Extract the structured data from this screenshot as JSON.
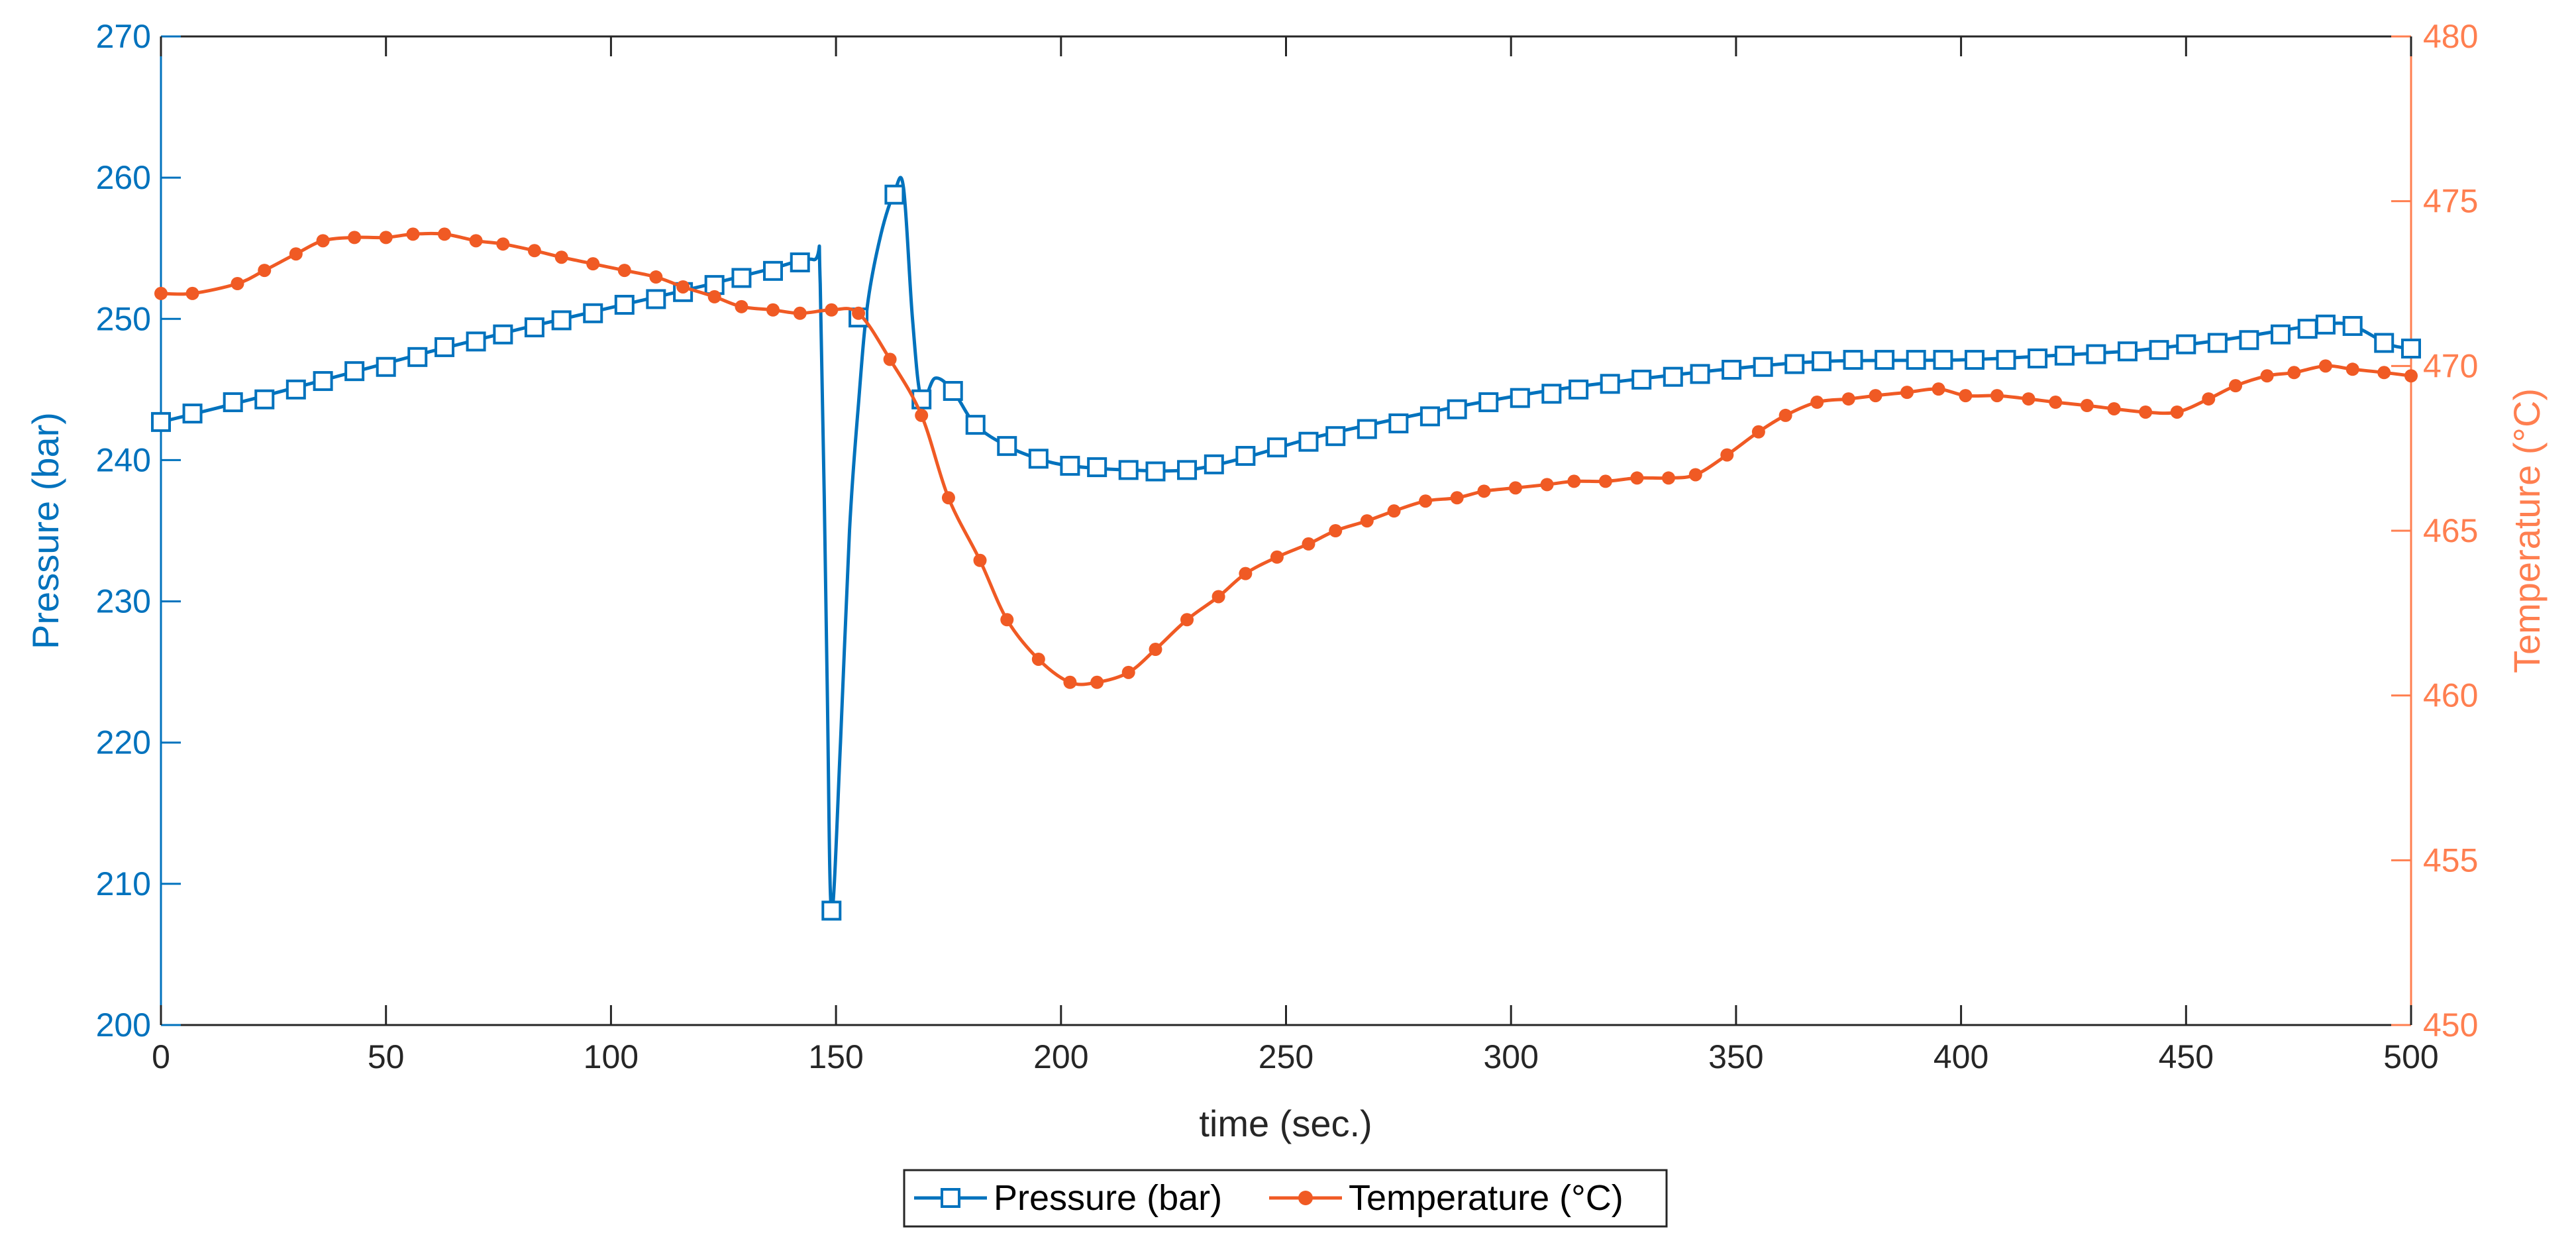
{
  "chart_data": {
    "type": "line",
    "title": "",
    "xlabel": "time (sec.)",
    "xlim": [
      0,
      500
    ],
    "x_ticks": [
      "0",
      "50",
      "100",
      "150",
      "200",
      "250",
      "300",
      "350",
      "400",
      "450",
      "500"
    ],
    "y_left": {
      "label": "Pressure (bar)",
      "lim": [
        200,
        270
      ],
      "ticks": [
        "200",
        "210",
        "220",
        "230",
        "240",
        "250",
        "260",
        "270"
      ],
      "color": "#0072BD"
    },
    "y_right": {
      "label": "Temperature (°C)",
      "lim": [
        450,
        480
      ],
      "ticks": [
        "450",
        "455",
        "460",
        "465",
        "470",
        "475",
        "480"
      ],
      "color": "#FF7F50"
    },
    "legend_position": "bottom-center",
    "grid": false,
    "series": [
      {
        "name": "Pressure (bar)",
        "axis": "left",
        "color": "#0072BD",
        "marker": "square-open",
        "curve": [
          [
            0,
            242.7
          ],
          [
            20,
            244.3
          ],
          [
            40,
            246.0
          ],
          [
            60,
            247.7
          ],
          [
            80,
            249.3
          ],
          [
            100,
            250.8
          ],
          [
            120,
            252.3
          ],
          [
            135,
            253.5
          ],
          [
            145,
            254.2
          ],
          [
            146.5,
            252.5
          ],
          [
            148,
            225
          ],
          [
            149,
            208.1
          ],
          [
            151,
            220
          ],
          [
            153,
            235
          ],
          [
            155,
            244
          ],
          [
            157,
            251
          ],
          [
            160,
            256
          ],
          [
            163,
            259
          ],
          [
            165,
            259.3
          ],
          [
            167,
            250
          ],
          [
            169,
            244.3
          ],
          [
            172,
            245.8
          ],
          [
            176,
            244.9
          ],
          [
            181,
            242.5
          ],
          [
            188,
            241.0
          ],
          [
            195,
            240.1
          ],
          [
            202,
            239.6
          ],
          [
            215,
            239.3
          ],
          [
            228,
            239.3
          ],
          [
            240,
            240.1
          ],
          [
            255,
            241.5
          ],
          [
            270,
            242.6
          ],
          [
            290,
            243.9
          ],
          [
            310,
            245.0
          ],
          [
            330,
            245.8
          ],
          [
            350,
            246.5
          ],
          [
            370,
            247.0
          ],
          [
            400,
            247.1
          ],
          [
            420,
            247.4
          ],
          [
            440,
            247.8
          ],
          [
            460,
            248.6
          ],
          [
            480,
            249.6
          ],
          [
            487,
            249.5
          ],
          [
            495,
            248.2
          ],
          [
            500,
            247.9
          ]
        ],
        "markers": [
          [
            0,
            242.7
          ],
          [
            7,
            243.3
          ],
          [
            16,
            244.1
          ],
          [
            23,
            244.3
          ],
          [
            30,
            245.0
          ],
          [
            36,
            245.6
          ],
          [
            43,
            246.3
          ],
          [
            50,
            246.6
          ],
          [
            57,
            247.3
          ],
          [
            63,
            248.0
          ],
          [
            70,
            248.4
          ],
          [
            76,
            248.9
          ],
          [
            83,
            249.4
          ],
          [
            89,
            249.9
          ],
          [
            96,
            250.4
          ],
          [
            103,
            251.0
          ],
          [
            110,
            251.4
          ],
          [
            116,
            251.9
          ],
          [
            123,
            252.4
          ],
          [
            129,
            252.9
          ],
          [
            136,
            253.4
          ],
          [
            142,
            254.0
          ],
          [
            149,
            208.1
          ],
          [
            155,
            250.1
          ],
          [
            163,
            258.8
          ],
          [
            169,
            244.3
          ],
          [
            176,
            244.9
          ],
          [
            181,
            242.5
          ],
          [
            188,
            241.0
          ],
          [
            195,
            240.1
          ],
          [
            202,
            239.6
          ],
          [
            208,
            239.5
          ],
          [
            215,
            239.3
          ],
          [
            221,
            239.2
          ],
          [
            228,
            239.3
          ],
          [
            234,
            239.7
          ],
          [
            241,
            240.3
          ],
          [
            248,
            240.9
          ],
          [
            255,
            241.3
          ],
          [
            261,
            241.7
          ],
          [
            268,
            242.2
          ],
          [
            275,
            242.6
          ],
          [
            282,
            243.1
          ],
          [
            288,
            243.6
          ],
          [
            295,
            244.1
          ],
          [
            302,
            244.4
          ],
          [
            309,
            244.7
          ],
          [
            315,
            245.0
          ],
          [
            322,
            245.4
          ],
          [
            329,
            245.7
          ],
          [
            336,
            245.9
          ],
          [
            342,
            246.1
          ],
          [
            349,
            246.4
          ],
          [
            356,
            246.6
          ],
          [
            363,
            246.8
          ],
          [
            369,
            247.0
          ],
          [
            376,
            247.1
          ],
          [
            383,
            247.1
          ],
          [
            390,
            247.1
          ],
          [
            396,
            247.1
          ],
          [
            403,
            247.1
          ],
          [
            410,
            247.1
          ],
          [
            417,
            247.2
          ],
          [
            423,
            247.4
          ],
          [
            430,
            247.5
          ],
          [
            437,
            247.7
          ],
          [
            444,
            247.8
          ],
          [
            450,
            248.2
          ],
          [
            457,
            248.3
          ],
          [
            464,
            248.5
          ],
          [
            471,
            248.9
          ],
          [
            477,
            249.3
          ],
          [
            481,
            249.6
          ],
          [
            487,
            249.5
          ],
          [
            494,
            248.3
          ],
          [
            500,
            247.9
          ]
        ]
      },
      {
        "name": "Temperature (°C)",
        "axis": "right",
        "color": "#F05A24",
        "marker": "dot",
        "points": [
          [
            0,
            472.2
          ],
          [
            7,
            472.2
          ],
          [
            17,
            472.5
          ],
          [
            23,
            472.9
          ],
          [
            30,
            473.4
          ],
          [
            36,
            473.8
          ],
          [
            43,
            473.9
          ],
          [
            50,
            473.9
          ],
          [
            56,
            474.0
          ],
          [
            63,
            474.0
          ],
          [
            70,
            473.8
          ],
          [
            76,
            473.7
          ],
          [
            83,
            473.5
          ],
          [
            89,
            473.3
          ],
          [
            96,
            473.1
          ],
          [
            103,
            472.9
          ],
          [
            110,
            472.7
          ],
          [
            116,
            472.4
          ],
          [
            123,
            472.1
          ],
          [
            129,
            471.8
          ],
          [
            136,
            471.7
          ],
          [
            142,
            471.6
          ],
          [
            149,
            471.7
          ],
          [
            155,
            471.6
          ],
          [
            162,
            470.2
          ],
          [
            169,
            468.5
          ],
          [
            175,
            466.0
          ],
          [
            182,
            464.1
          ],
          [
            188,
            462.3
          ],
          [
            195,
            461.1
          ],
          [
            202,
            460.4
          ],
          [
            208,
            460.4
          ],
          [
            215,
            460.7
          ],
          [
            221,
            461.4
          ],
          [
            228,
            462.3
          ],
          [
            235,
            463.0
          ],
          [
            241,
            463.7
          ],
          [
            248,
            464.2
          ],
          [
            255,
            464.6
          ],
          [
            261,
            465.0
          ],
          [
            268,
            465.3
          ],
          [
            274,
            465.6
          ],
          [
            281,
            465.9
          ],
          [
            288,
            466.0
          ],
          [
            294,
            466.2
          ],
          [
            301,
            466.3
          ],
          [
            308,
            466.4
          ],
          [
            314,
            466.5
          ],
          [
            321,
            466.5
          ],
          [
            328,
            466.6
          ],
          [
            335,
            466.6
          ],
          [
            341,
            466.7
          ],
          [
            348,
            467.3
          ],
          [
            355,
            468.0
          ],
          [
            361,
            468.5
          ],
          [
            368,
            468.9
          ],
          [
            375,
            469.0
          ],
          [
            381,
            469.1
          ],
          [
            388,
            469.2
          ],
          [
            395,
            469.3
          ],
          [
            401,
            469.1
          ],
          [
            408,
            469.1
          ],
          [
            415,
            469.0
          ],
          [
            421,
            468.9
          ],
          [
            428,
            468.8
          ],
          [
            434,
            468.7
          ],
          [
            441,
            468.6
          ],
          [
            448,
            468.6
          ],
          [
            455,
            469.0
          ],
          [
            461,
            469.4
          ],
          [
            468,
            469.7
          ],
          [
            474,
            469.8
          ],
          [
            481,
            470.0
          ],
          [
            487,
            469.9
          ],
          [
            494,
            469.8
          ],
          [
            500,
            469.7
          ]
        ]
      }
    ]
  }
}
